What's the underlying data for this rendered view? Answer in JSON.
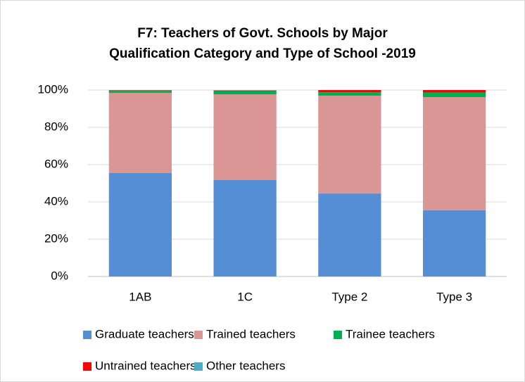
{
  "chart_data": {
    "type": "stacked_bar",
    "title": [
      "F7: Teachers of Govt. Schools by Major",
      "Qualification Category and Type of School -2019"
    ],
    "categories": [
      "1AB",
      "1C",
      "Type 2",
      "Type 3"
    ],
    "series": [
      {
        "name": "Graduate teachers",
        "color": "#558ed5",
        "values": [
          55.5,
          51.7,
          44.5,
          35.5
        ]
      },
      {
        "name": "Trained teachers",
        "color": "#d99694",
        "values": [
          43.0,
          46.0,
          52.5,
          60.7
        ]
      },
      {
        "name": "Trainee teachers",
        "color": "#00b050",
        "values": [
          1.0,
          1.7,
          1.8,
          2.5
        ]
      },
      {
        "name": "Untrained teachers",
        "color": "#ff0000",
        "values": [
          0.3,
          0.3,
          1.2,
          1.3
        ]
      },
      {
        "name": "Other teachers",
        "color": "#4bacc6",
        "values": [
          0.2,
          0.3,
          0,
          0
        ]
      }
    ],
    "ylim": [
      0,
      100
    ],
    "yticks": [
      {
        "value": 0,
        "label": "0%"
      },
      {
        "value": 20,
        "label": "20%"
      },
      {
        "value": 40,
        "label": "40%"
      },
      {
        "value": 60,
        "label": "60%"
      },
      {
        "value": 80,
        "label": "80%"
      },
      {
        "value": 100,
        "label": "100%"
      }
    ],
    "grid": true
  }
}
